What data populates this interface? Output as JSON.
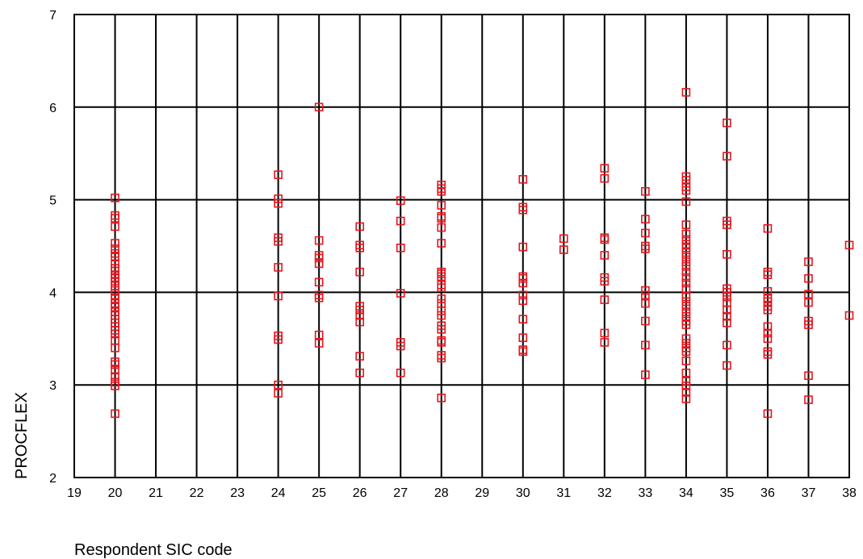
{
  "chart_data": {
    "type": "scatter",
    "title": "",
    "xlabel": "Respondent SIC code",
    "ylabel": "PROCFLEX",
    "xlim": [
      19,
      38
    ],
    "ylim": [
      2,
      7
    ],
    "x_ticks": [
      "19",
      "20",
      "21",
      "22",
      "23",
      "24",
      "25",
      "26",
      "27",
      "28",
      "29",
      "30",
      "31",
      "32",
      "33",
      "34",
      "35",
      "36",
      "37",
      "38"
    ],
    "y_ticks": [
      "2",
      "3",
      "4",
      "5",
      "6",
      "7"
    ],
    "grid": true,
    "legend": "none",
    "marker": "square",
    "colors": {
      "marker": "#e8141c",
      "grid": "#000000"
    },
    "points": [
      [
        20,
        5.02
      ],
      [
        20,
        4.83
      ],
      [
        20,
        4.8
      ],
      [
        20,
        4.71
      ],
      [
        20,
        4.53
      ],
      [
        20,
        4.47
      ],
      [
        20,
        4.42
      ],
      [
        20,
        4.38
      ],
      [
        20,
        4.31
      ],
      [
        20,
        4.26
      ],
      [
        20,
        4.23
      ],
      [
        20,
        4.19
      ],
      [
        20,
        4.16
      ],
      [
        20,
        4.12
      ],
      [
        20,
        4.07
      ],
      [
        20,
        4.02
      ],
      [
        20,
        3.97
      ],
      [
        20,
        3.93
      ],
      [
        20,
        3.88
      ],
      [
        20,
        3.84
      ],
      [
        20,
        3.79
      ],
      [
        20,
        3.75
      ],
      [
        20,
        3.71
      ],
      [
        20,
        3.67
      ],
      [
        20,
        3.63
      ],
      [
        20,
        3.59
      ],
      [
        20,
        3.55
      ],
      [
        20,
        3.48
      ],
      [
        20,
        3.4
      ],
      [
        20,
        3.25
      ],
      [
        20,
        3.22
      ],
      [
        20,
        3.16
      ],
      [
        20,
        3.09
      ],
      [
        20,
        3.03
      ],
      [
        20,
        2.99
      ],
      [
        20,
        2.69
      ],
      [
        24,
        5.27
      ],
      [
        24,
        5.01
      ],
      [
        24,
        4.96
      ],
      [
        24,
        4.59
      ],
      [
        24,
        4.55
      ],
      [
        24,
        4.27
      ],
      [
        24,
        3.96
      ],
      [
        24,
        3.53
      ],
      [
        24,
        3.49
      ],
      [
        24,
        3.0
      ],
      [
        24,
        2.91
      ],
      [
        25,
        6.0
      ],
      [
        25,
        4.56
      ],
      [
        25,
        4.4
      ],
      [
        25,
        4.37
      ],
      [
        25,
        4.31
      ],
      [
        25,
        4.11
      ],
      [
        25,
        3.97
      ],
      [
        25,
        3.94
      ],
      [
        25,
        3.54
      ],
      [
        25,
        3.45
      ],
      [
        26,
        4.71
      ],
      [
        26,
        4.51
      ],
      [
        26,
        4.48
      ],
      [
        26,
        4.22
      ],
      [
        26,
        3.85
      ],
      [
        26,
        3.81
      ],
      [
        26,
        3.75
      ],
      [
        26,
        3.68
      ],
      [
        26,
        3.31
      ],
      [
        26,
        3.13
      ],
      [
        27,
        4.99
      ],
      [
        27,
        4.77
      ],
      [
        27,
        4.48
      ],
      [
        27,
        3.99
      ],
      [
        27,
        3.46
      ],
      [
        27,
        3.42
      ],
      [
        27,
        3.13
      ],
      [
        28,
        5.16
      ],
      [
        28,
        5.12
      ],
      [
        28,
        5.09
      ],
      [
        28,
        4.94
      ],
      [
        28,
        4.82
      ],
      [
        28,
        4.8
      ],
      [
        28,
        4.7
      ],
      [
        28,
        4.53
      ],
      [
        28,
        4.22
      ],
      [
        28,
        4.2
      ],
      [
        28,
        4.17
      ],
      [
        28,
        4.08
      ],
      [
        28,
        4.05
      ],
      [
        28,
        3.93
      ],
      [
        28,
        3.88
      ],
      [
        28,
        3.8
      ],
      [
        28,
        3.75
      ],
      [
        28,
        3.64
      ],
      [
        28,
        3.6
      ],
      [
        28,
        3.48
      ],
      [
        28,
        3.46
      ],
      [
        28,
        3.32
      ],
      [
        28,
        3.29
      ],
      [
        28,
        2.86
      ],
      [
        30,
        5.22
      ],
      [
        30,
        4.92
      ],
      [
        30,
        4.89
      ],
      [
        30,
        4.49
      ],
      [
        30,
        4.17
      ],
      [
        30,
        4.15
      ],
      [
        30,
        4.1
      ],
      [
        30,
        3.97
      ],
      [
        30,
        3.91
      ],
      [
        30,
        3.71
      ],
      [
        30,
        3.51
      ],
      [
        30,
        3.38
      ],
      [
        30,
        3.36
      ],
      [
        31,
        4.58
      ],
      [
        31,
        4.46
      ],
      [
        32,
        5.34
      ],
      [
        32,
        5.23
      ],
      [
        32,
        4.59
      ],
      [
        32,
        4.57
      ],
      [
        32,
        4.4
      ],
      [
        32,
        4.16
      ],
      [
        32,
        4.12
      ],
      [
        32,
        3.92
      ],
      [
        32,
        3.56
      ],
      [
        32,
        3.46
      ],
      [
        33,
        5.09
      ],
      [
        33,
        4.79
      ],
      [
        33,
        4.64
      ],
      [
        33,
        4.5
      ],
      [
        33,
        4.47
      ],
      [
        33,
        4.02
      ],
      [
        33,
        3.97
      ],
      [
        33,
        3.88
      ],
      [
        33,
        3.69
      ],
      [
        33,
        3.43
      ],
      [
        33,
        3.11
      ],
      [
        34,
        6.16
      ],
      [
        34,
        5.25
      ],
      [
        34,
        5.21
      ],
      [
        34,
        5.14
      ],
      [
        34,
        5.1
      ],
      [
        34,
        4.98
      ],
      [
        34,
        4.73
      ],
      [
        34,
        4.63
      ],
      [
        34,
        4.57
      ],
      [
        34,
        4.52
      ],
      [
        34,
        4.48
      ],
      [
        34,
        4.43
      ],
      [
        34,
        4.38
      ],
      [
        34,
        4.33
      ],
      [
        34,
        4.28
      ],
      [
        34,
        4.22
      ],
      [
        34,
        4.16
      ],
      [
        34,
        4.1
      ],
      [
        34,
        4.04
      ],
      [
        34,
        3.95
      ],
      [
        34,
        3.9
      ],
      [
        34,
        3.85
      ],
      [
        34,
        3.79
      ],
      [
        34,
        3.74
      ],
      [
        34,
        3.69
      ],
      [
        34,
        3.65
      ],
      [
        34,
        3.5
      ],
      [
        34,
        3.45
      ],
      [
        34,
        3.4
      ],
      [
        34,
        3.36
      ],
      [
        34,
        3.26
      ],
      [
        34,
        3.13
      ],
      [
        34,
        3.04
      ],
      [
        34,
        2.99
      ],
      [
        34,
        2.92
      ],
      [
        34,
        2.85
      ],
      [
        35,
        5.83
      ],
      [
        35,
        5.47
      ],
      [
        35,
        4.77
      ],
      [
        35,
        4.73
      ],
      [
        35,
        4.41
      ],
      [
        35,
        4.04
      ],
      [
        35,
        4.0
      ],
      [
        35,
        3.95
      ],
      [
        35,
        3.89
      ],
      [
        35,
        3.81
      ],
      [
        35,
        3.74
      ],
      [
        35,
        3.67
      ],
      [
        35,
        3.43
      ],
      [
        35,
        3.21
      ],
      [
        36,
        4.69
      ],
      [
        36,
        4.22
      ],
      [
        36,
        4.19
      ],
      [
        36,
        4.01
      ],
      [
        36,
        3.94
      ],
      [
        36,
        3.9
      ],
      [
        36,
        3.85
      ],
      [
        36,
        3.81
      ],
      [
        36,
        3.63
      ],
      [
        36,
        3.56
      ],
      [
        36,
        3.5
      ],
      [
        36,
        3.36
      ],
      [
        36,
        3.33
      ],
      [
        36,
        2.69
      ],
      [
        37,
        4.33
      ],
      [
        37,
        4.15
      ],
      [
        37,
        3.98
      ],
      [
        37,
        3.89
      ],
      [
        37,
        3.69
      ],
      [
        37,
        3.65
      ],
      [
        37,
        3.1
      ],
      [
        37,
        2.84
      ],
      [
        38,
        4.51
      ],
      [
        38,
        3.75
      ]
    ]
  }
}
